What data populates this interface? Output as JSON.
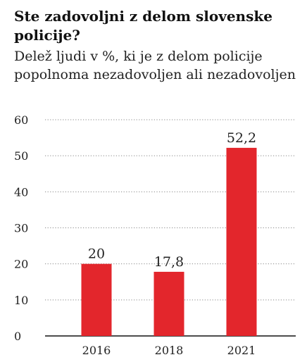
{
  "chart_data": {
    "type": "bar",
    "title": "Ste zadovoljni z delom slovenske policije?",
    "subtitle": "Delež ljudi v %, ki je z delom policije popolnoma nezadovoljen ali nezadovoljen",
    "categories": [
      "2016",
      "2018",
      "2021"
    ],
    "values": [
      20,
      17.8,
      52.2
    ],
    "value_labels": [
      "20",
      "17,8",
      "52,2"
    ],
    "xlabel": "",
    "ylabel": "",
    "ylim": [
      0,
      60
    ],
    "yticks": [
      0,
      10,
      20,
      30,
      40,
      50,
      60
    ],
    "ytick_labels": [
      "0",
      "10",
      "20",
      "30",
      "40",
      "50",
      "60"
    ],
    "grid": true,
    "bar_color": "#e3262c",
    "grid_color": "#888888"
  }
}
